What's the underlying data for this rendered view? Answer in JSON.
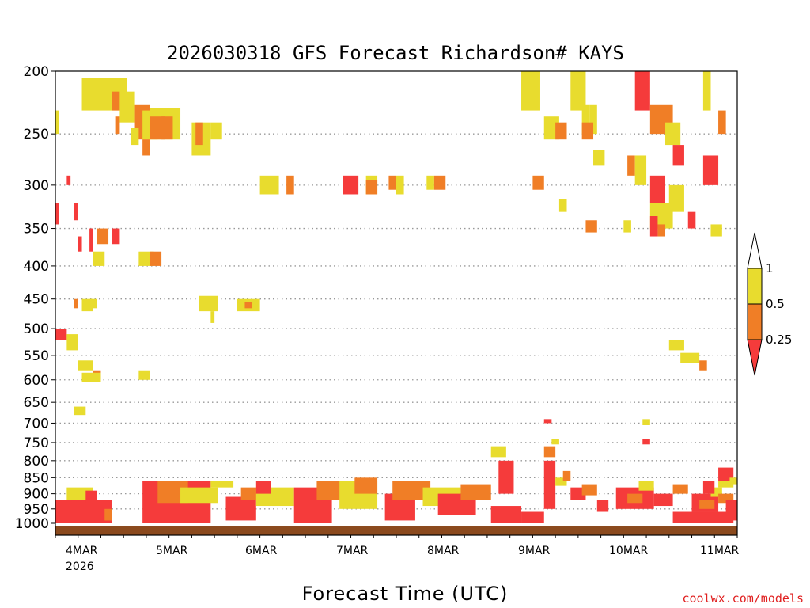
{
  "chart_data": {
    "type": "heatmap",
    "title": "2026030318 GFS Forecast Richardson# KAYS",
    "xlabel": "Forecast Time (UTC)",
    "ylabel": "",
    "credit": "coolwx.com/models",
    "y_ticks": [
      "200",
      "250",
      "300",
      "350",
      "400",
      "450",
      "500",
      "550",
      "600",
      "650",
      "700",
      "750",
      "800",
      "850",
      "900",
      "950",
      "1000"
    ],
    "x_ticks": [
      {
        "label": "4MAR",
        "sub": "2026"
      },
      {
        "label": "5MAR",
        "sub": ""
      },
      {
        "label": "6MAR",
        "sub": ""
      },
      {
        "label": "7MAR",
        "sub": ""
      },
      {
        "label": "8MAR",
        "sub": ""
      },
      {
        "label": "9MAR",
        "sub": ""
      },
      {
        "label": "10MAR",
        "sub": ""
      },
      {
        "label": "11MAR",
        "sub": ""
      }
    ],
    "legend": {
      "levels": [
        "1",
        "0.5",
        "0.25"
      ],
      "bins": [
        {
          "range": "<0.25",
          "color": "#f53b3b"
        },
        {
          "range": "0.25-0.5",
          "color": "#f07e26"
        },
        {
          "range": "0.5-1",
          "color": "#e8dc2e"
        },
        {
          "range": ">1",
          "color": "#ffffff"
        }
      ]
    },
    "colors": {
      "red": "#f53b3b",
      "orange": "#f07e26",
      "yellow": "#e8dc2e",
      "ground": "#8b4a1e"
    },
    "x_range_hours": [
      -3,
      177
    ],
    "cells": [
      [
        "y",
        4,
        12,
        205,
        230
      ],
      [
        "y",
        12,
        16,
        205,
        230
      ],
      [
        "o",
        12,
        14,
        215,
        230
      ],
      [
        "y",
        14,
        18,
        215,
        240
      ],
      [
        "o",
        13,
        14,
        235,
        250
      ],
      [
        "o",
        18,
        22,
        225,
        255
      ],
      [
        "y",
        20,
        24,
        230,
        255
      ],
      [
        "o",
        20,
        22,
        255,
        270
      ],
      [
        "y",
        17,
        19,
        245,
        260
      ],
      [
        "y",
        22,
        30,
        228,
        255
      ],
      [
        "o",
        22,
        26,
        235,
        255
      ],
      [
        "o",
        25,
        28,
        235,
        255
      ],
      [
        "y",
        33,
        38,
        240,
        270
      ],
      [
        "o",
        34,
        36,
        240,
        260
      ],
      [
        "y",
        38,
        41,
        240,
        255
      ],
      [
        "y",
        51,
        56,
        290,
        310
      ],
      [
        "o",
        58,
        60,
        290,
        310
      ],
      [
        "r",
        73,
        77,
        290,
        310
      ],
      [
        "y",
        79,
        82,
        290,
        310
      ],
      [
        "o",
        79,
        82,
        295,
        310
      ],
      [
        "o",
        85,
        87,
        290,
        305
      ],
      [
        "y",
        87,
        89,
        290,
        310
      ],
      [
        "y",
        95,
        97,
        290,
        305
      ],
      [
        "o",
        97,
        100,
        290,
        305
      ],
      [
        "y",
        120,
        125,
        200,
        230
      ],
      [
        "y",
        133,
        137,
        200,
        230
      ],
      [
        "y",
        136,
        138,
        225,
        250
      ],
      [
        "y",
        138,
        140,
        225,
        250
      ],
      [
        "y",
        126,
        130,
        235,
        255
      ],
      [
        "o",
        129,
        132,
        240,
        255
      ],
      [
        "o",
        136,
        139,
        240,
        255
      ],
      [
        "y",
        139,
        142,
        265,
        280
      ],
      [
        "o",
        123,
        126,
        290,
        305
      ],
      [
        "y",
        130,
        132,
        315,
        330
      ],
      [
        "o",
        137,
        140,
        340,
        355
      ],
      [
        "y",
        147,
        149,
        340,
        355
      ],
      [
        "o",
        148,
        150,
        270,
        290
      ],
      [
        "y",
        150,
        153,
        270,
        300
      ],
      [
        "r",
        150,
        154,
        200,
        230
      ],
      [
        "o",
        154,
        160,
        225,
        250
      ],
      [
        "y",
        158,
        162,
        240,
        260
      ],
      [
        "r",
        160,
        163,
        260,
        280
      ],
      [
        "y",
        159,
        163,
        300,
        330
      ],
      [
        "r",
        164,
        166,
        330,
        350
      ],
      [
        "y",
        168,
        170,
        200,
        230
      ],
      [
        "o",
        172,
        174,
        230,
        250
      ],
      [
        "r",
        168,
        172,
        270,
        300
      ],
      [
        "r",
        154,
        158,
        290,
        320
      ],
      [
        "y",
        154,
        160,
        320,
        350
      ],
      [
        "o",
        156,
        158,
        345,
        360
      ],
      [
        "r",
        154,
        156,
        335,
        360
      ],
      [
        "y",
        170,
        173,
        345,
        360
      ],
      [
        "y",
        -3,
        -2,
        230,
        250
      ],
      [
        "r",
        0,
        1,
        290,
        300
      ],
      [
        "r",
        -3,
        -2,
        320,
        345
      ],
      [
        "r",
        2,
        3,
        320,
        340
      ],
      [
        "r",
        3,
        4,
        360,
        380
      ],
      [
        "r",
        6,
        7,
        350,
        380
      ],
      [
        "o",
        8,
        11,
        350,
        370
      ],
      [
        "r",
        12,
        14,
        350,
        370
      ],
      [
        "y",
        7,
        10,
        380,
        400
      ],
      [
        "y",
        19,
        23,
        380,
        400
      ],
      [
        "o",
        22,
        25,
        380,
        400
      ],
      [
        "y",
        6,
        8,
        450,
        465
      ],
      [
        "o",
        2,
        3,
        450,
        465
      ],
      [
        "y",
        4,
        7,
        450,
        470
      ],
      [
        "y",
        35,
        40,
        445,
        470
      ],
      [
        "y",
        45,
        51,
        450,
        470
      ],
      [
        "o",
        47,
        49,
        455,
        465
      ],
      [
        "y",
        38,
        39,
        470,
        490
      ],
      [
        "r",
        -3,
        0,
        500,
        520
      ],
      [
        "y",
        0,
        3,
        510,
        540
      ],
      [
        "y",
        3,
        7,
        560,
        580
      ],
      [
        "o",
        7,
        9,
        580,
        600
      ],
      [
        "y",
        4,
        9,
        585,
        605
      ],
      [
        "y",
        19,
        22,
        580,
        600
      ],
      [
        "y",
        2,
        5,
        660,
        680
      ],
      [
        "y",
        159,
        163,
        520,
        540
      ],
      [
        "y",
        162,
        167,
        545,
        565
      ],
      [
        "o",
        167,
        169,
        560,
        580
      ],
      [
        "r",
        126,
        128,
        690,
        700
      ],
      [
        "y",
        152,
        154,
        690,
        705
      ],
      [
        "r",
        152,
        154,
        740,
        755
      ],
      [
        "y",
        128,
        130,
        740,
        755
      ],
      [
        "o",
        126,
        129,
        760,
        790
      ],
      [
        "r",
        126,
        129,
        800,
        950
      ],
      [
        "y",
        129,
        132,
        850,
        875
      ],
      [
        "o",
        131,
        133,
        830,
        860
      ],
      [
        "r",
        133,
        137,
        880,
        920
      ],
      [
        "o",
        136,
        140,
        870,
        905
      ],
      [
        "r",
        140,
        143,
        920,
        960
      ],
      [
        "r",
        145,
        155,
        880,
        950
      ],
      [
        "o",
        148,
        152,
        900,
        930
      ],
      [
        "y",
        151,
        155,
        860,
        890
      ],
      [
        "r",
        155,
        160,
        900,
        940
      ],
      [
        "o",
        160,
        164,
        870,
        900
      ],
      [
        "r",
        165,
        172,
        900,
        960
      ],
      [
        "o",
        167,
        171,
        920,
        950
      ],
      [
        "y",
        170,
        173,
        880,
        910
      ],
      [
        "r",
        172,
        176,
        820,
        860
      ],
      [
        "y",
        172,
        176,
        860,
        880
      ],
      [
        "o",
        172,
        176,
        900,
        930
      ],
      [
        "r",
        168,
        171,
        860,
        900
      ],
      [
        "y",
        175,
        177,
        850,
        870
      ],
      [
        "r",
        174,
        177,
        920,
        990
      ],
      [
        "r",
        160,
        176,
        960,
        1000
      ],
      [
        "r",
        -3,
        12,
        920,
        1000
      ],
      [
        "y",
        0,
        7,
        880,
        920
      ],
      [
        "r",
        5,
        8,
        890,
        930
      ],
      [
        "o",
        10,
        12,
        950,
        990
      ],
      [
        "r",
        20,
        38,
        860,
        1000
      ],
      [
        "o",
        24,
        32,
        860,
        930
      ],
      [
        "y",
        30,
        40,
        880,
        930
      ],
      [
        "y",
        38,
        44,
        860,
        880
      ],
      [
        "r",
        42,
        50,
        910,
        990
      ],
      [
        "o",
        46,
        52,
        880,
        920
      ],
      [
        "y",
        50,
        60,
        880,
        940
      ],
      [
        "r",
        50,
        54,
        860,
        900
      ],
      [
        "r",
        60,
        70,
        880,
        1000
      ],
      [
        "o",
        66,
        74,
        860,
        920
      ],
      [
        "y",
        72,
        82,
        860,
        950
      ],
      [
        "o",
        76,
        82,
        850,
        900
      ],
      [
        "r",
        84,
        92,
        900,
        990
      ],
      [
        "o",
        86,
        96,
        860,
        920
      ],
      [
        "y",
        94,
        104,
        880,
        940
      ],
      [
        "r",
        98,
        108,
        900,
        970
      ],
      [
        "o",
        104,
        112,
        870,
        920
      ],
      [
        "r",
        114,
        118,
        800,
        900
      ],
      [
        "r",
        112,
        120,
        940,
        1000
      ],
      [
        "r",
        120,
        126,
        960,
        1000
      ],
      [
        "y",
        112,
        116,
        760,
        790
      ]
    ]
  }
}
